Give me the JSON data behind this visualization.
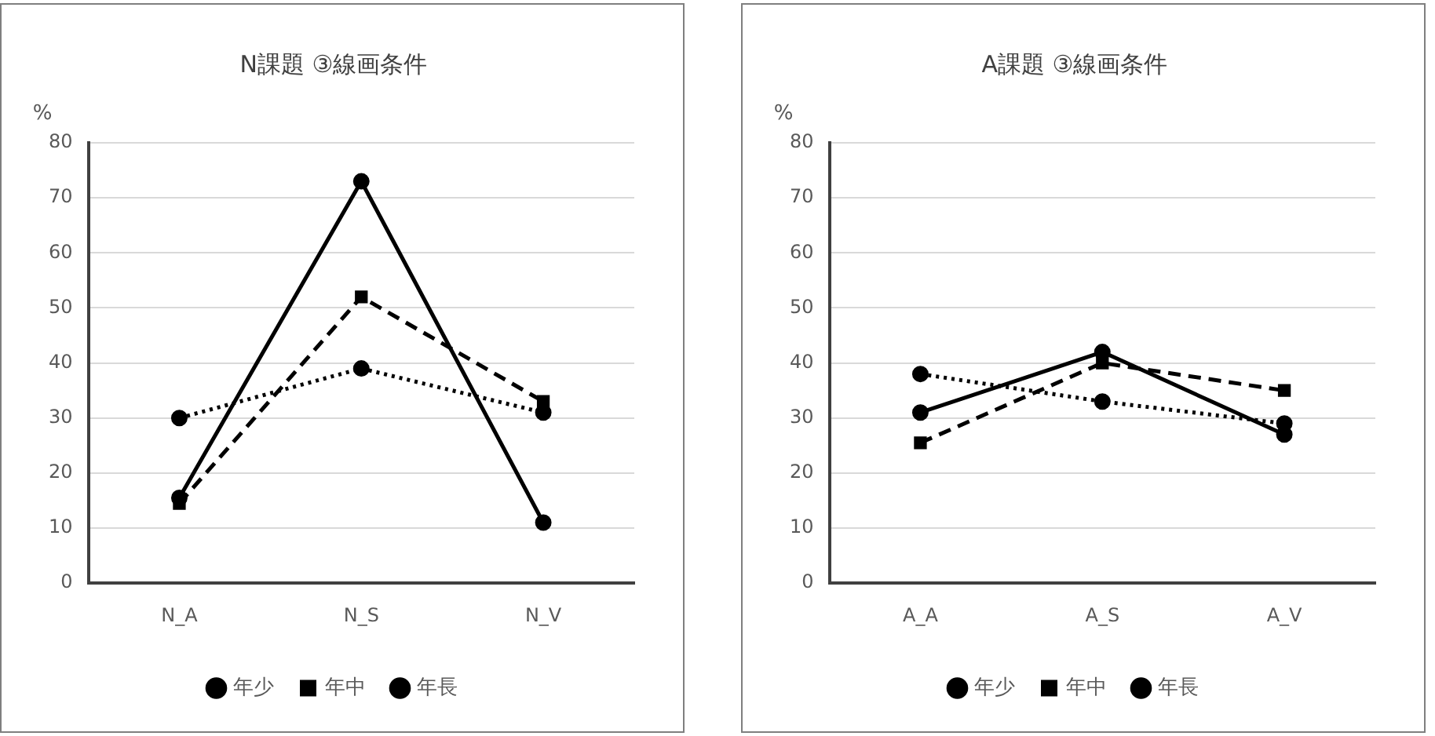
{
  "chart_data": [
    {
      "type": "line",
      "title": "N課題 ③線画条件",
      "ylabel": "%",
      "categories": [
        "N_A",
        "N_S",
        "N_V"
      ],
      "ylim": [
        0,
        80
      ],
      "yticks": [
        0,
        10,
        20,
        30,
        40,
        50,
        60,
        70,
        80
      ],
      "grid": "y",
      "legend": "bottom",
      "series": [
        {
          "name": "年少",
          "color": "#000000",
          "values": [
            30,
            39,
            31
          ],
          "line_style": "dotted",
          "marker": "circle"
        },
        {
          "name": "年中",
          "color": "#000000",
          "values": [
            14.5,
            52,
            33
          ],
          "line_style": "dashed",
          "marker": "square"
        },
        {
          "name": "年長",
          "color": "#000000",
          "values": [
            15.5,
            73,
            11
          ],
          "line_style": "solid",
          "marker": "circle"
        }
      ]
    },
    {
      "type": "line",
      "title": "A課題 ③線画条件",
      "ylabel": "%",
      "categories": [
        "A_A",
        "A_S",
        "A_V"
      ],
      "ylim": [
        0,
        80
      ],
      "yticks": [
        0,
        10,
        20,
        30,
        40,
        50,
        60,
        70,
        80
      ],
      "grid": "y",
      "legend": "bottom",
      "series": [
        {
          "name": "年少",
          "color": "#000000",
          "values": [
            38,
            33,
            29
          ],
          "line_style": "dotted",
          "marker": "circle"
        },
        {
          "name": "年中",
          "color": "#000000",
          "values": [
            25.5,
            40,
            35
          ],
          "line_style": "dashed",
          "marker": "square"
        },
        {
          "name": "年長",
          "color": "#000000",
          "values": [
            31,
            42,
            27
          ],
          "line_style": "solid",
          "marker": "circle"
        }
      ]
    }
  ]
}
